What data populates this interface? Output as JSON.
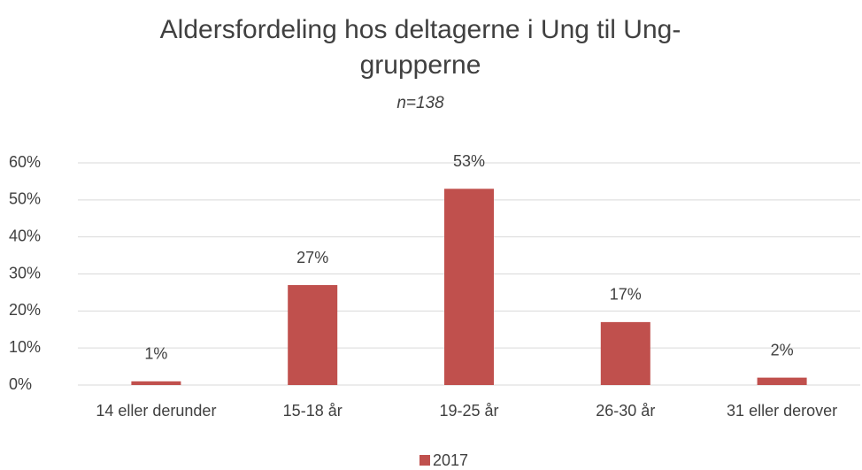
{
  "chart_data": {
    "type": "bar",
    "title": "Aldersfordeling hos deltagerne i Ung til Ung-grupperne",
    "subtitle": "n=138",
    "categories": [
      "14 eller derunder",
      "15-18 år",
      "19-25 år",
      "26-30 år",
      "31 eller derover"
    ],
    "series": [
      {
        "name": "2017",
        "color": "#c0504d",
        "values": [
          1,
          27,
          53,
          17,
          2
        ],
        "value_labels": [
          "1%",
          "27%",
          "53%",
          "17%",
          "2%"
        ]
      }
    ],
    "ylim": [
      0,
      60
    ],
    "yticks": [
      {
        "value": 0,
        "label": "0%"
      },
      {
        "value": 10,
        "label": "10%"
      },
      {
        "value": 20,
        "label": "20%"
      },
      {
        "value": 30,
        "label": "30%"
      },
      {
        "value": 40,
        "label": "40%"
      },
      {
        "value": 50,
        "label": "50%"
      },
      {
        "value": 60,
        "label": "60%"
      }
    ],
    "grid": true,
    "legend": "bottom"
  }
}
